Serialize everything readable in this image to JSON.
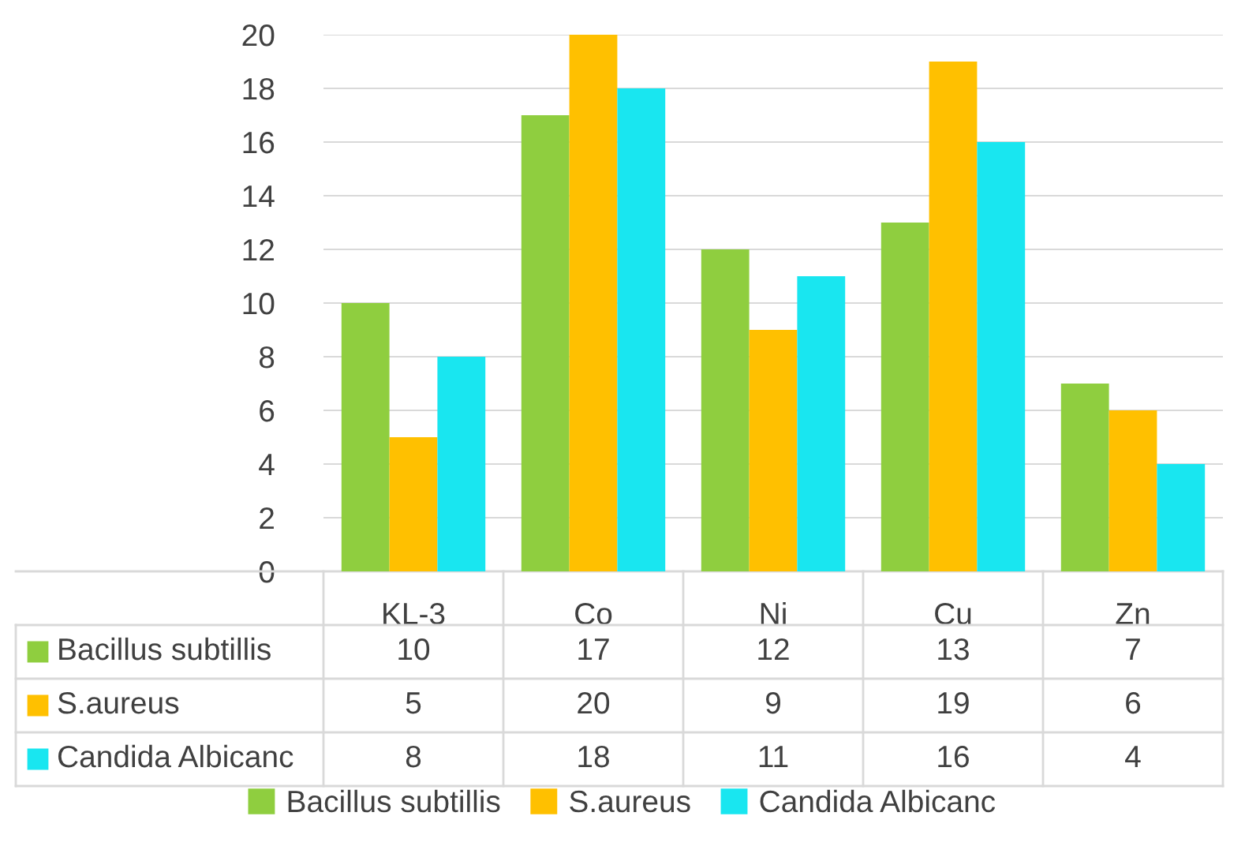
{
  "chart_data": {
    "type": "bar",
    "categories": [
      "KL-3",
      "Co",
      "Ni",
      "Cu",
      "Zn"
    ],
    "series": [
      {
        "name": "Bacillus subtillis",
        "color": "#8fce3f",
        "values": [
          10,
          17,
          12,
          13,
          7
        ]
      },
      {
        "name": "S.aureus",
        "color": "#ffc000",
        "values": [
          5,
          20,
          9,
          19,
          6
        ]
      },
      {
        "name": "Candida Albicanc",
        "color": "#19e6f0",
        "values": [
          8,
          18,
          11,
          16,
          4
        ]
      }
    ],
    "ylim": [
      0,
      20
    ],
    "yticks": [
      0,
      2,
      4,
      6,
      8,
      10,
      12,
      14,
      16,
      18,
      20
    ],
    "grid": "y",
    "legend": "bottom",
    "data_labels": true
  }
}
